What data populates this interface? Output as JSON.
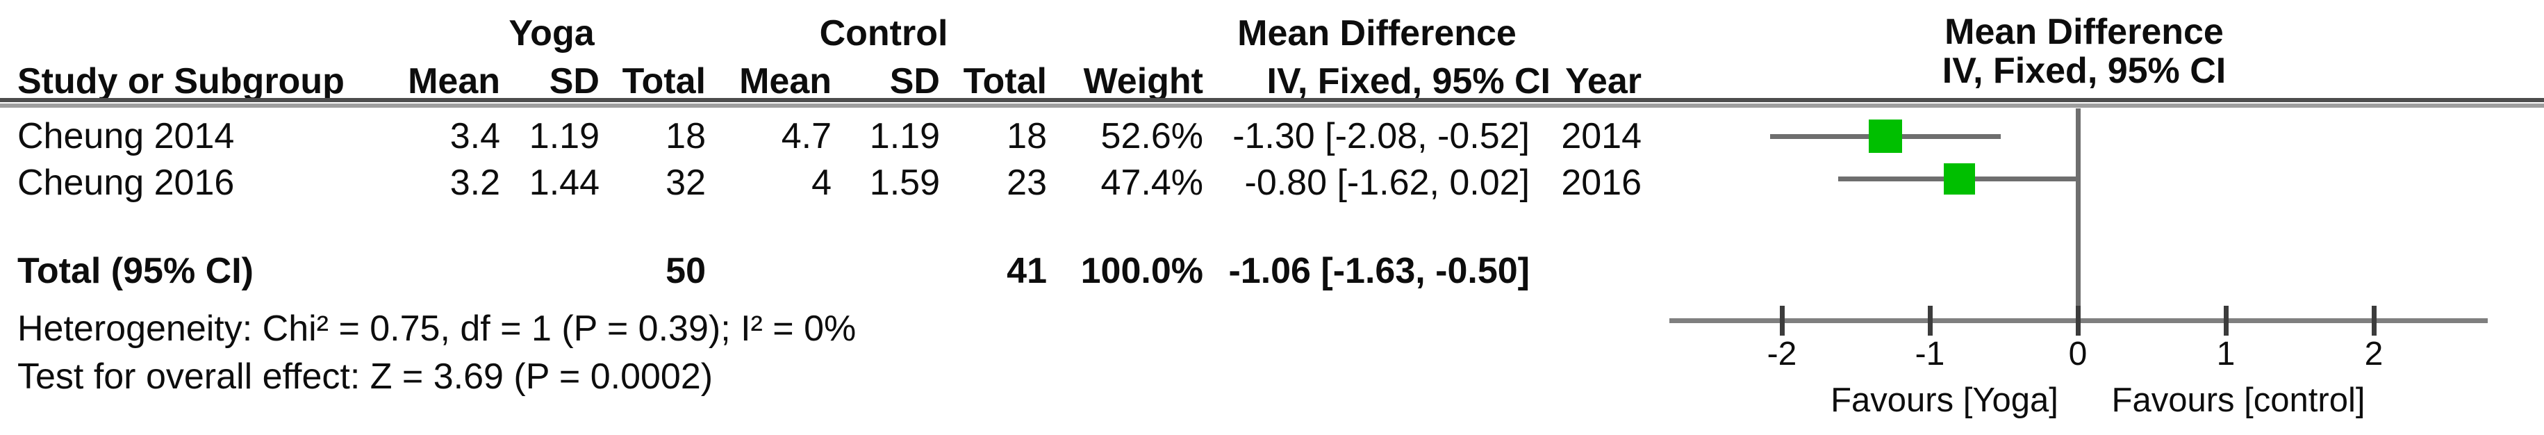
{
  "table": {
    "group_headers": {
      "yoga": "Yoga",
      "control": "Control",
      "mean_difference": "Mean Difference"
    },
    "plot_header": {
      "title": "Mean Difference",
      "subtitle": "IV, Fixed, 95% CI"
    },
    "columns": {
      "study": "Study or Subgroup",
      "yoga_mean": "Mean",
      "yoga_sd": "SD",
      "yoga_total": "Total",
      "control_mean": "Mean",
      "control_sd": "SD",
      "control_total": "Total",
      "weight": "Weight",
      "ci": "IV, Fixed, 95% CI",
      "year": "Year"
    },
    "studies": [
      {
        "name": "Cheung 2014",
        "yoga_mean": "3.4",
        "yoga_sd": "1.19",
        "yoga_total": "18",
        "control_mean": "4.7",
        "control_sd": "1.19",
        "control_total": "18",
        "weight": "52.6%",
        "ci": "-1.30 [-2.08, -0.52]",
        "year": "2014"
      },
      {
        "name": "Cheung 2016",
        "yoga_mean": "3.2",
        "yoga_sd": "1.44",
        "yoga_total": "32",
        "control_mean": "4",
        "control_sd": "1.59",
        "control_total": "23",
        "weight": "47.4%",
        "ci": "-0.80 [-1.62, 0.02]",
        "year": "2016"
      }
    ],
    "total_row": {
      "label": "Total (95% CI)",
      "yoga_total": "50",
      "control_total": "41",
      "weight": "100.0%",
      "ci": "-1.06 [-1.63, -0.50]"
    },
    "footer": {
      "heterogeneity": "Heterogeneity: Chi² = 0.75, df = 1 (P = 0.39); I² = 0%",
      "overall_effect": "Test for overall effect: Z = 3.69 (P = 0.0002)"
    }
  },
  "chart_data": {
    "type": "forest",
    "effect_measure": "Mean Difference (IV, Fixed, 95% CI)",
    "xlim": [
      -2.76,
      2.77
    ],
    "ticks": [
      -2,
      -1,
      0,
      1,
      2
    ],
    "tick_labels": [
      "-2",
      "-1",
      "0",
      "1",
      "2"
    ],
    "favours_left": "Favours [Yoga]",
    "favours_right": "Favours [control]",
    "studies": [
      {
        "name": "Cheung 2014",
        "mean": -1.3,
        "ci_low": -2.08,
        "ci_high": -0.52,
        "weight_pct": 52.6,
        "year": 2014
      },
      {
        "name": "Cheung 2016",
        "mean": -0.8,
        "ci_low": -1.62,
        "ci_high": 0.02,
        "weight_pct": 47.4,
        "year": 2016
      }
    ],
    "total": {
      "mean": -1.06,
      "ci_low": -1.63,
      "ci_high": -0.5,
      "weight_pct": 100.0
    },
    "colors": {
      "marker_green": "#00bf00",
      "diamond_black": "#000000",
      "ci_line_gray": "#6e6e6e",
      "axis_gray": "#7f7f7f",
      "tick_dark": "#3c3c3c",
      "rule_dark": "#4d4d4d",
      "rule_light": "#9e9e9e"
    }
  }
}
